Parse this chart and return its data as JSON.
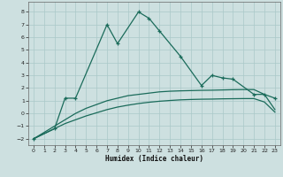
{
  "xlabel": "Humidex (Indice chaleur)",
  "x_values": [
    0,
    1,
    2,
    3,
    4,
    5,
    6,
    7,
    8,
    9,
    10,
    11,
    12,
    13,
    14,
    15,
    16,
    17,
    18,
    19,
    20,
    21,
    22,
    23
  ],
  "line1_y": [
    -2.0,
    null,
    -1.2,
    1.2,
    1.2,
    null,
    null,
    7.0,
    5.5,
    null,
    8.0,
    7.5,
    6.5,
    null,
    4.5,
    null,
    2.2,
    3.0,
    2.8,
    2.7,
    null,
    1.5,
    1.5,
    1.2
  ],
  "upper_y": [
    -2.0,
    -1.5,
    -1.0,
    -0.5,
    0.0,
    0.4,
    0.7,
    1.0,
    1.2,
    1.4,
    1.5,
    1.6,
    1.7,
    1.75,
    1.78,
    1.8,
    1.82,
    1.83,
    1.85,
    1.87,
    1.88,
    1.88,
    1.5,
    0.3
  ],
  "lower_y": [
    -2.0,
    -1.6,
    -1.2,
    -0.8,
    -0.5,
    -0.2,
    0.05,
    0.3,
    0.5,
    0.65,
    0.78,
    0.88,
    0.96,
    1.02,
    1.07,
    1.1,
    1.12,
    1.13,
    1.15,
    1.16,
    1.17,
    1.17,
    0.9,
    0.1
  ],
  "line_color": "#1a6b5a",
  "bg_color": "#cde0e0",
  "grid_color": "#aac8c8",
  "ylim": [
    -2.5,
    8.8
  ],
  "xlim": [
    -0.5,
    23.5
  ],
  "yticks": [
    -2,
    -1,
    0,
    1,
    2,
    3,
    4,
    5,
    6,
    7,
    8
  ],
  "xticks": [
    0,
    1,
    2,
    3,
    4,
    5,
    6,
    7,
    8,
    9,
    10,
    11,
    12,
    13,
    14,
    15,
    16,
    17,
    18,
    19,
    20,
    21,
    22,
    23
  ]
}
